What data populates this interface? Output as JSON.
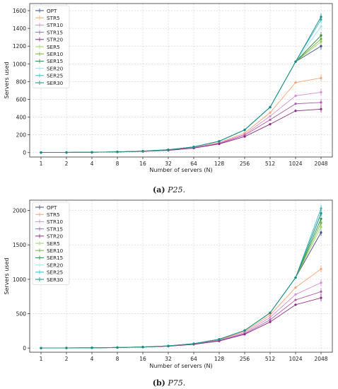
{
  "captions": [
    {
      "label": "(a)",
      "name": "P25."
    },
    {
      "label": "(b)",
      "name": "P75."
    }
  ],
  "chart_data": [
    {
      "type": "line",
      "title": "",
      "xlabel": "Number of servers (N)",
      "ylabel": "Servers used",
      "x": [
        "1",
        "2",
        "4",
        "8",
        "16",
        "32",
        "64",
        "128",
        "256",
        "512",
        "1024",
        "2048"
      ],
      "xscale": "log2",
      "ylim": [
        -50,
        1680
      ],
      "yticks": [
        0,
        200,
        400,
        600,
        800,
        1000,
        1200,
        1400,
        1600
      ],
      "grid": true,
      "legend": "top-left",
      "series": [
        {
          "name": "OPT",
          "color": "#3b4a8a",
          "values": [
            1,
            2,
            4,
            8,
            16,
            32,
            64,
            128,
            256,
            512,
            1024,
            1200
          ]
        },
        {
          "name": "STR5",
          "color": "#f4a470",
          "values": [
            1,
            2,
            4,
            7,
            14,
            28,
            57,
            112,
            220,
            450,
            790,
            840
          ]
        },
        {
          "name": "STR10",
          "color": "#d68cd3",
          "values": [
            1,
            2,
            4,
            7,
            14,
            27,
            54,
            107,
            205,
            410,
            640,
            680
          ]
        },
        {
          "name": "STR15",
          "color": "#b060a8",
          "values": [
            1,
            2,
            4,
            7,
            13,
            26,
            52,
            102,
            195,
            370,
            550,
            565
          ]
        },
        {
          "name": "STR20",
          "color": "#8e2a84",
          "values": [
            1,
            2,
            4,
            7,
            13,
            25,
            50,
            97,
            180,
            320,
            470,
            490
          ]
        },
        {
          "name": "SER5",
          "color": "#9ed36a",
          "values": [
            1,
            2,
            4,
            8,
            16,
            32,
            64,
            128,
            256,
            512,
            1024,
            1250
          ]
        },
        {
          "name": "SER10",
          "color": "#6cb43a",
          "values": [
            1,
            2,
            4,
            8,
            16,
            32,
            64,
            128,
            256,
            512,
            1024,
            1280
          ]
        },
        {
          "name": "SER15",
          "color": "#2e8b3a",
          "values": [
            1,
            2,
            4,
            8,
            16,
            32,
            64,
            128,
            256,
            512,
            1024,
            1320
          ]
        },
        {
          "name": "SER20",
          "color": "#a7dff0",
          "values": [
            1,
            2,
            4,
            8,
            16,
            32,
            64,
            128,
            256,
            512,
            1024,
            1420
          ]
        },
        {
          "name": "SER25",
          "color": "#2fbdc8",
          "values": [
            1,
            2,
            4,
            8,
            16,
            32,
            64,
            128,
            256,
            512,
            1024,
            1500
          ]
        },
        {
          "name": "SER30",
          "color": "#1a8a80",
          "values": [
            1,
            2,
            4,
            8,
            16,
            32,
            64,
            128,
            256,
            512,
            1024,
            1530
          ]
        }
      ]
    },
    {
      "type": "line",
      "title": "",
      "xlabel": "Number of servers (N)",
      "ylabel": "Servers used",
      "x": [
        "1",
        "2",
        "4",
        "8",
        "16",
        "32",
        "64",
        "128",
        "256",
        "512",
        "1024",
        "2048"
      ],
      "xscale": "log2",
      "ylim": [
        -60,
        2150
      ],
      "yticks": [
        0,
        500,
        1000,
        1500,
        2000
      ],
      "grid": true,
      "legend": "top-left",
      "series": [
        {
          "name": "OPT",
          "color": "#3b4a8a",
          "values": [
            1,
            2,
            4,
            8,
            16,
            32,
            64,
            128,
            256,
            512,
            1024,
            1680
          ]
        },
        {
          "name": "STR5",
          "color": "#f4a470",
          "values": [
            1,
            2,
            4,
            8,
            15,
            30,
            60,
            120,
            240,
            480,
            880,
            1150
          ]
        },
        {
          "name": "STR10",
          "color": "#d68cd3",
          "values": [
            1,
            2,
            4,
            8,
            15,
            29,
            58,
            114,
            225,
            445,
            780,
            950
          ]
        },
        {
          "name": "STR15",
          "color": "#b060a8",
          "values": [
            1,
            2,
            4,
            8,
            14,
            28,
            56,
            108,
            210,
            410,
            700,
            820
          ]
        },
        {
          "name": "STR20",
          "color": "#8e2a84",
          "values": [
            1,
            2,
            4,
            8,
            14,
            27,
            54,
            103,
            200,
            380,
            630,
            730
          ]
        },
        {
          "name": "SER5",
          "color": "#9ed36a",
          "values": [
            1,
            2,
            4,
            8,
            16,
            32,
            64,
            128,
            256,
            512,
            1024,
            1760
          ]
        },
        {
          "name": "SER10",
          "color": "#6cb43a",
          "values": [
            1,
            2,
            4,
            8,
            16,
            32,
            64,
            128,
            256,
            512,
            1024,
            1820
          ]
        },
        {
          "name": "SER15",
          "color": "#2e8b3a",
          "values": [
            1,
            2,
            4,
            8,
            16,
            32,
            64,
            128,
            256,
            512,
            1024,
            1880
          ]
        },
        {
          "name": "SER20",
          "color": "#a7dff0",
          "values": [
            1,
            2,
            4,
            8,
            16,
            32,
            64,
            128,
            256,
            512,
            1024,
            1940
          ]
        },
        {
          "name": "SER25",
          "color": "#2fbdc8",
          "values": [
            1,
            2,
            4,
            8,
            16,
            32,
            64,
            128,
            256,
            512,
            1024,
            2030
          ]
        },
        {
          "name": "SER30",
          "color": "#1a8a80",
          "values": [
            1,
            2,
            4,
            8,
            16,
            32,
            64,
            128,
            256,
            512,
            1024,
            1960
          ]
        }
      ]
    }
  ]
}
